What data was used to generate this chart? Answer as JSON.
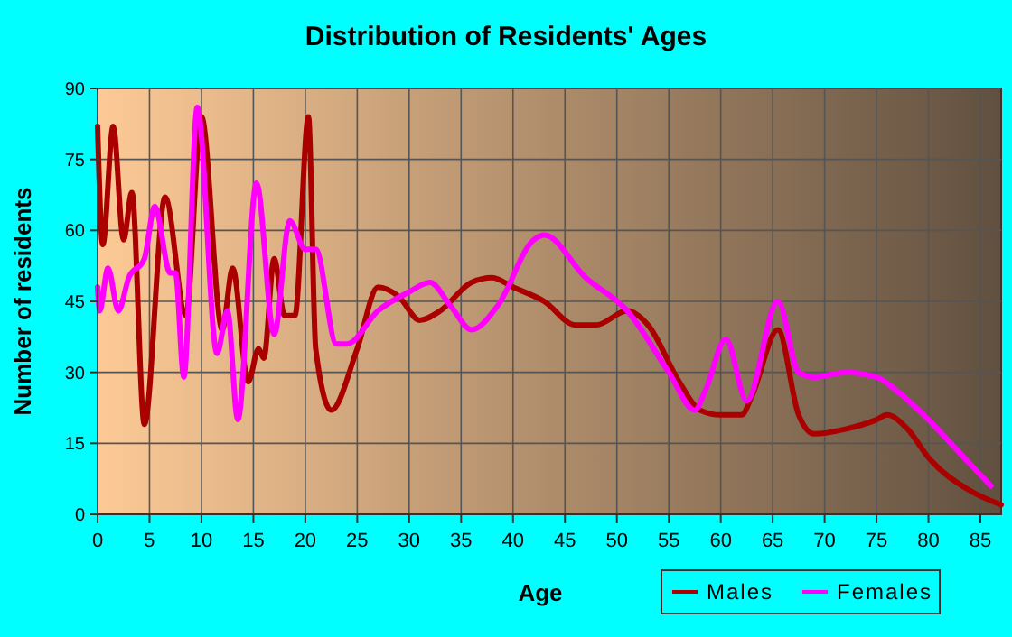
{
  "chart_data": {
    "type": "line",
    "title": "Distribution of Residents' Ages",
    "xlabel": "Age",
    "ylabel": "Number of residents",
    "xlim": [
      0,
      87
    ],
    "xticks": [
      0,
      5,
      10,
      15,
      20,
      25,
      30,
      35,
      40,
      45,
      50,
      55,
      60,
      65,
      70,
      75,
      80,
      85
    ],
    "ylim": [
      0,
      90
    ],
    "yticks": [
      0,
      15,
      30,
      45,
      60,
      75,
      90
    ],
    "grid": true,
    "legend": "bottom right",
    "line_style": "solid",
    "series": [
      {
        "name": "Males",
        "color": "#aa0000",
        "x": [
          0,
          0.5,
          1.5,
          2.5,
          3.3,
          4.5,
          6.5,
          8.5,
          10,
          12,
          13,
          14.5,
          15.5,
          16,
          17,
          18,
          19,
          20.3,
          21,
          22.5,
          25,
          27,
          29,
          31,
          33,
          36,
          38,
          40,
          43,
          46,
          48,
          51,
          53,
          56,
          58,
          60,
          62,
          63,
          65.5,
          67.5,
          69,
          72,
          75,
          76,
          78,
          80,
          84,
          87
        ],
        "values": [
          82,
          57,
          82,
          58,
          68,
          19,
          67,
          42,
          84,
          39,
          52,
          28,
          35,
          33,
          54,
          42,
          42,
          84,
          35,
          22,
          35,
          48,
          46,
          41,
          43,
          49,
          50,
          48,
          45,
          40,
          40,
          43,
          40,
          28,
          22,
          21,
          21,
          25,
          39,
          21,
          17,
          18,
          20,
          21,
          18,
          12,
          5,
          2
        ]
      },
      {
        "name": "Females",
        "color": "#ff00ff",
        "x": [
          0,
          0.2,
          1,
          2,
          3,
          4.5,
          5.5,
          7,
          7.5,
          8.3,
          9.6,
          11.5,
          12.5,
          13.5,
          15.3,
          17,
          18.5,
          20,
          21,
          23,
          24,
          27,
          30,
          32,
          34,
          36,
          38.5,
          42,
          43,
          47,
          51,
          55,
          57.5,
          58.5,
          60.5,
          62.5,
          65.5,
          67.5,
          69,
          72,
          75,
          77,
          80,
          83,
          86
        ],
        "values": [
          48,
          43,
          52,
          43,
          50,
          54,
          65,
          51,
          51,
          29,
          86,
          34,
          43,
          20,
          70,
          38,
          62,
          56,
          56,
          36,
          36,
          43,
          47,
          49,
          44,
          39,
          44,
          58,
          59,
          50,
          43,
          30,
          22,
          26,
          37,
          24,
          45,
          30,
          29,
          30,
          29,
          26,
          20,
          13,
          6
        ]
      }
    ]
  }
}
